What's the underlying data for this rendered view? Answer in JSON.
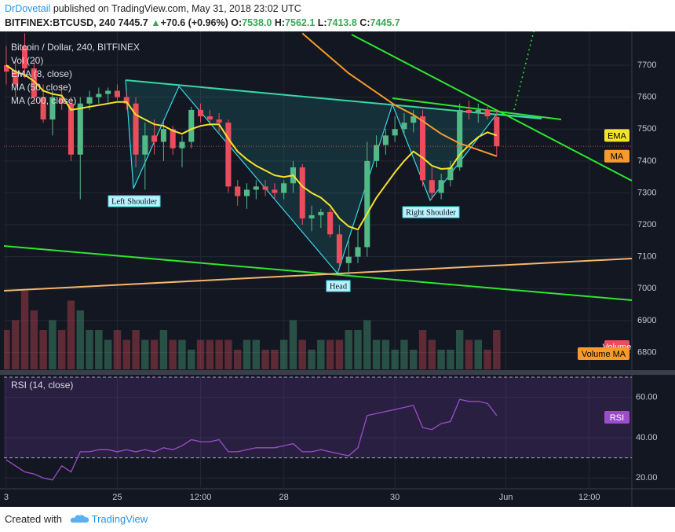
{
  "header": {
    "author": "DrDovetail",
    "published": "published on TradingView.com, May 31, 2018 23:02 UTC",
    "symbol": "BITFINEX:BTCUSD, 240",
    "last": "7445.7",
    "change": "+70.6 (+0.96%)",
    "open_label": "O:",
    "open": "7538.0",
    "high_label": "H:",
    "high": "7562.1",
    "low_label": "L:",
    "low": "7413.8",
    "close_label": "C:",
    "close": "7445.7"
  },
  "footer": {
    "created": "Created with",
    "brand": "TradingView"
  },
  "chart_data": [
    {
      "type": "candlestick",
      "title": "Bitcoin / Dollar, 240, BITFINEX",
      "studies": [
        "Vol (20)",
        "MA (200, close)"
      ],
      "annotations": [
        "Left Shoulder",
        "Head",
        "Right Shoulder"
      ],
      "up_color": "#53b987",
      "down_color": "#eb4d5c",
      "xlim": [
        -0.25,
        67.6
      ],
      "xticks": [
        {
          "value": 0,
          "label": "3"
        },
        {
          "value": 12,
          "label": "25"
        },
        {
          "value": 21,
          "label": "12:00"
        },
        {
          "value": 30,
          "label": "28"
        },
        {
          "value": 42,
          "label": "30"
        },
        {
          "value": 54,
          "label": "Jun"
        },
        {
          "value": 63,
          "label": "12:00"
        }
      ],
      "ylim": [
        6747,
        7806
      ],
      "yticks": [
        6800,
        6900,
        7000,
        7100,
        7200,
        7300,
        7400,
        7500,
        7600,
        7700
      ],
      "grid": true,
      "open": [
        7700,
        7680,
        7760,
        7690,
        7600,
        7530,
        7600,
        7580,
        7420,
        7580,
        7600,
        7610,
        7620,
        7600,
        7580,
        7420,
        7480,
        7460,
        7500,
        7440,
        7460,
        7560,
        7540,
        7530,
        7520,
        7320,
        7290,
        7310,
        7320,
        7310,
        7300,
        7330,
        7380,
        7220,
        7230,
        7240,
        7170,
        7080,
        7100,
        7130,
        7400,
        7450,
        7480,
        7500,
        7520,
        7540,
        7340,
        7300,
        7340,
        7380,
        7560,
        7550,
        7560,
        7538
      ],
      "high": [
        7760,
        7720,
        7800,
        7720,
        7640,
        7620,
        7640,
        7600,
        7600,
        7620,
        7630,
        7630,
        7640,
        7620,
        7600,
        7520,
        7530,
        7530,
        7510,
        7480,
        7570,
        7580,
        7560,
        7550,
        7530,
        7340,
        7330,
        7340,
        7340,
        7330,
        7340,
        7400,
        7390,
        7260,
        7250,
        7250,
        7200,
        7150,
        7180,
        7460,
        7480,
        7500,
        7540,
        7550,
        7560,
        7560,
        7380,
        7360,
        7400,
        7580,
        7590,
        7580,
        7570,
        7562
      ],
      "low": [
        7640,
        7600,
        7660,
        7580,
        7520,
        7480,
        7560,
        7400,
        7280,
        7560,
        7580,
        7580,
        7590,
        7560,
        7380,
        7310,
        7420,
        7400,
        7420,
        7380,
        7440,
        7520,
        7510,
        7490,
        7300,
        7260,
        7250,
        7280,
        7290,
        7280,
        7280,
        7300,
        7200,
        7180,
        7190,
        7160,
        7060,
        7040,
        7080,
        7100,
        7380,
        7420,
        7460,
        7480,
        7490,
        7320,
        7280,
        7280,
        7320,
        7370,
        7530,
        7520,
        7530,
        7414
      ],
      "close": [
        7680,
        7640,
        7690,
        7600,
        7530,
        7600,
        7580,
        7420,
        7580,
        7600,
        7610,
        7620,
        7600,
        7580,
        7420,
        7480,
        7460,
        7500,
        7440,
        7460,
        7560,
        7540,
        7530,
        7520,
        7320,
        7290,
        7310,
        7320,
        7310,
        7300,
        7330,
        7380,
        7220,
        7230,
        7240,
        7170,
        7080,
        7100,
        7130,
        7400,
        7450,
        7480,
        7500,
        7520,
        7540,
        7340,
        7300,
        7340,
        7380,
        7560,
        7550,
        7560,
        7540,
        7446
      ],
      "series": [
        {
          "name": "EMA (8, close)",
          "badge": "EMA",
          "color": "#f5e32a",
          "values": [
            7700,
            7680,
            7670,
            7650,
            7620,
            7610,
            7605,
            7560,
            7565,
            7570,
            7575,
            7580,
            7585,
            7585,
            7545,
            7530,
            7515,
            7510,
            7495,
            7485,
            7500,
            7510,
            7515,
            7515,
            7470,
            7430,
            7405,
            7385,
            7370,
            7355,
            7350,
            7355,
            7320,
            7300,
            7285,
            7260,
            7220,
            7195,
            7185,
            7235,
            7285,
            7325,
            7365,
            7400,
            7430,
            7410,
            7385,
            7375,
            7377,
            7420,
            7450,
            7475,
            7490,
            7480
          ]
        },
        {
          "name": "MA (50, close)",
          "badge": "MA",
          "color": "#f79a2b",
          "values": [
            null,
            null,
            null,
            null,
            null,
            null,
            null,
            null,
            null,
            null,
            null,
            null,
            null,
            null,
            null,
            null,
            null,
            null,
            null,
            null,
            null,
            null,
            null,
            null,
            null,
            null,
            null,
            null,
            null,
            null,
            null,
            null,
            7800,
            7775,
            7750,
            7725,
            7700,
            7675,
            7655,
            7635,
            7615,
            7595,
            7575,
            7560,
            7545,
            7525,
            7505,
            7485,
            7470,
            7455,
            7445,
            7435,
            7425,
            7415
          ]
        }
      ]
    },
    {
      "type": "bar",
      "badge": "Volume",
      "badge2": "Volume MA",
      "ylim": [
        0,
        8
      ],
      "values": [
        4,
        5,
        8,
        6,
        4,
        5,
        4,
        7,
        6,
        4,
        4,
        3,
        4,
        3,
        4,
        3,
        3,
        4,
        3,
        3,
        2,
        3,
        3,
        3,
        3,
        2,
        3,
        3,
        2,
        2,
        3,
        5,
        3,
        2,
        3,
        3,
        3,
        4,
        4,
        5,
        3,
        3,
        2,
        3,
        2,
        4,
        3,
        2,
        2,
        4,
        3,
        3,
        2,
        4
      ]
    },
    {
      "type": "line",
      "title": "RSI (14, close)",
      "badge": "RSI",
      "color": "#9c4dcc",
      "ylim": [
        15.4,
        70.8
      ],
      "yticks": [
        {
          "value": 20,
          "label": "20.00"
        },
        {
          "value": 40,
          "label": "40.00"
        },
        {
          "value": 60,
          "label": "60.00"
        }
      ],
      "bands": [
        30,
        70
      ],
      "values": [
        29,
        26,
        23,
        22,
        20,
        19,
        26,
        23,
        33,
        33,
        34,
        34,
        33,
        34,
        33,
        34,
        33,
        35,
        34,
        36,
        39,
        38,
        38,
        39,
        33,
        33,
        34,
        35,
        35,
        35,
        36,
        37,
        33,
        33,
        34,
        33,
        32,
        31,
        35,
        51,
        52,
        53,
        54,
        55,
        56,
        45,
        44,
        47,
        48,
        59,
        58,
        58,
        57,
        51
      ]
    }
  ]
}
